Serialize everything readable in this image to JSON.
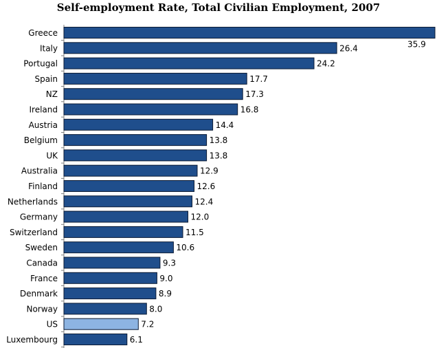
{
  "chart_data": {
    "type": "bar",
    "orientation": "horizontal",
    "title": "Self-employment Rate, Total Civilian Employment, 2007",
    "xlabel": "",
    "ylabel": "",
    "grid": false,
    "xlim": [
      0,
      35.9
    ],
    "categories": [
      "Greece",
      "Italy",
      "Portugal",
      "Spain",
      "NZ",
      "Ireland",
      "Austria",
      "Belgium",
      "UK",
      "Australia",
      "Finland",
      "Netherlands",
      "Germany",
      "Switzerland",
      "Sweden",
      "Canada",
      "France",
      "Denmark",
      "Norway",
      "US",
      "Luxembourg"
    ],
    "values": [
      35.9,
      26.4,
      24.2,
      17.7,
      17.3,
      16.8,
      14.4,
      13.8,
      13.8,
      12.9,
      12.6,
      12.4,
      12.0,
      11.5,
      10.6,
      9.3,
      9.0,
      8.9,
      8.0,
      7.2,
      6.1
    ],
    "value_labels": [
      "35.9",
      "26.4",
      "24.2",
      "17.7",
      "17.3",
      "16.8",
      "14.4",
      "13.8",
      "13.8",
      "12.9",
      "12.6",
      "12.4",
      "12.0",
      "11.5",
      "10.6",
      "9.3",
      "9.0",
      "8.9",
      "8.0",
      "7.2",
      "6.1"
    ],
    "colors": {
      "default": "#1f4e8c",
      "highlight": "#8db4e2",
      "outline": "#0b1a33",
      "axis": "#7f7f7f"
    },
    "highlight_category": "US"
  }
}
